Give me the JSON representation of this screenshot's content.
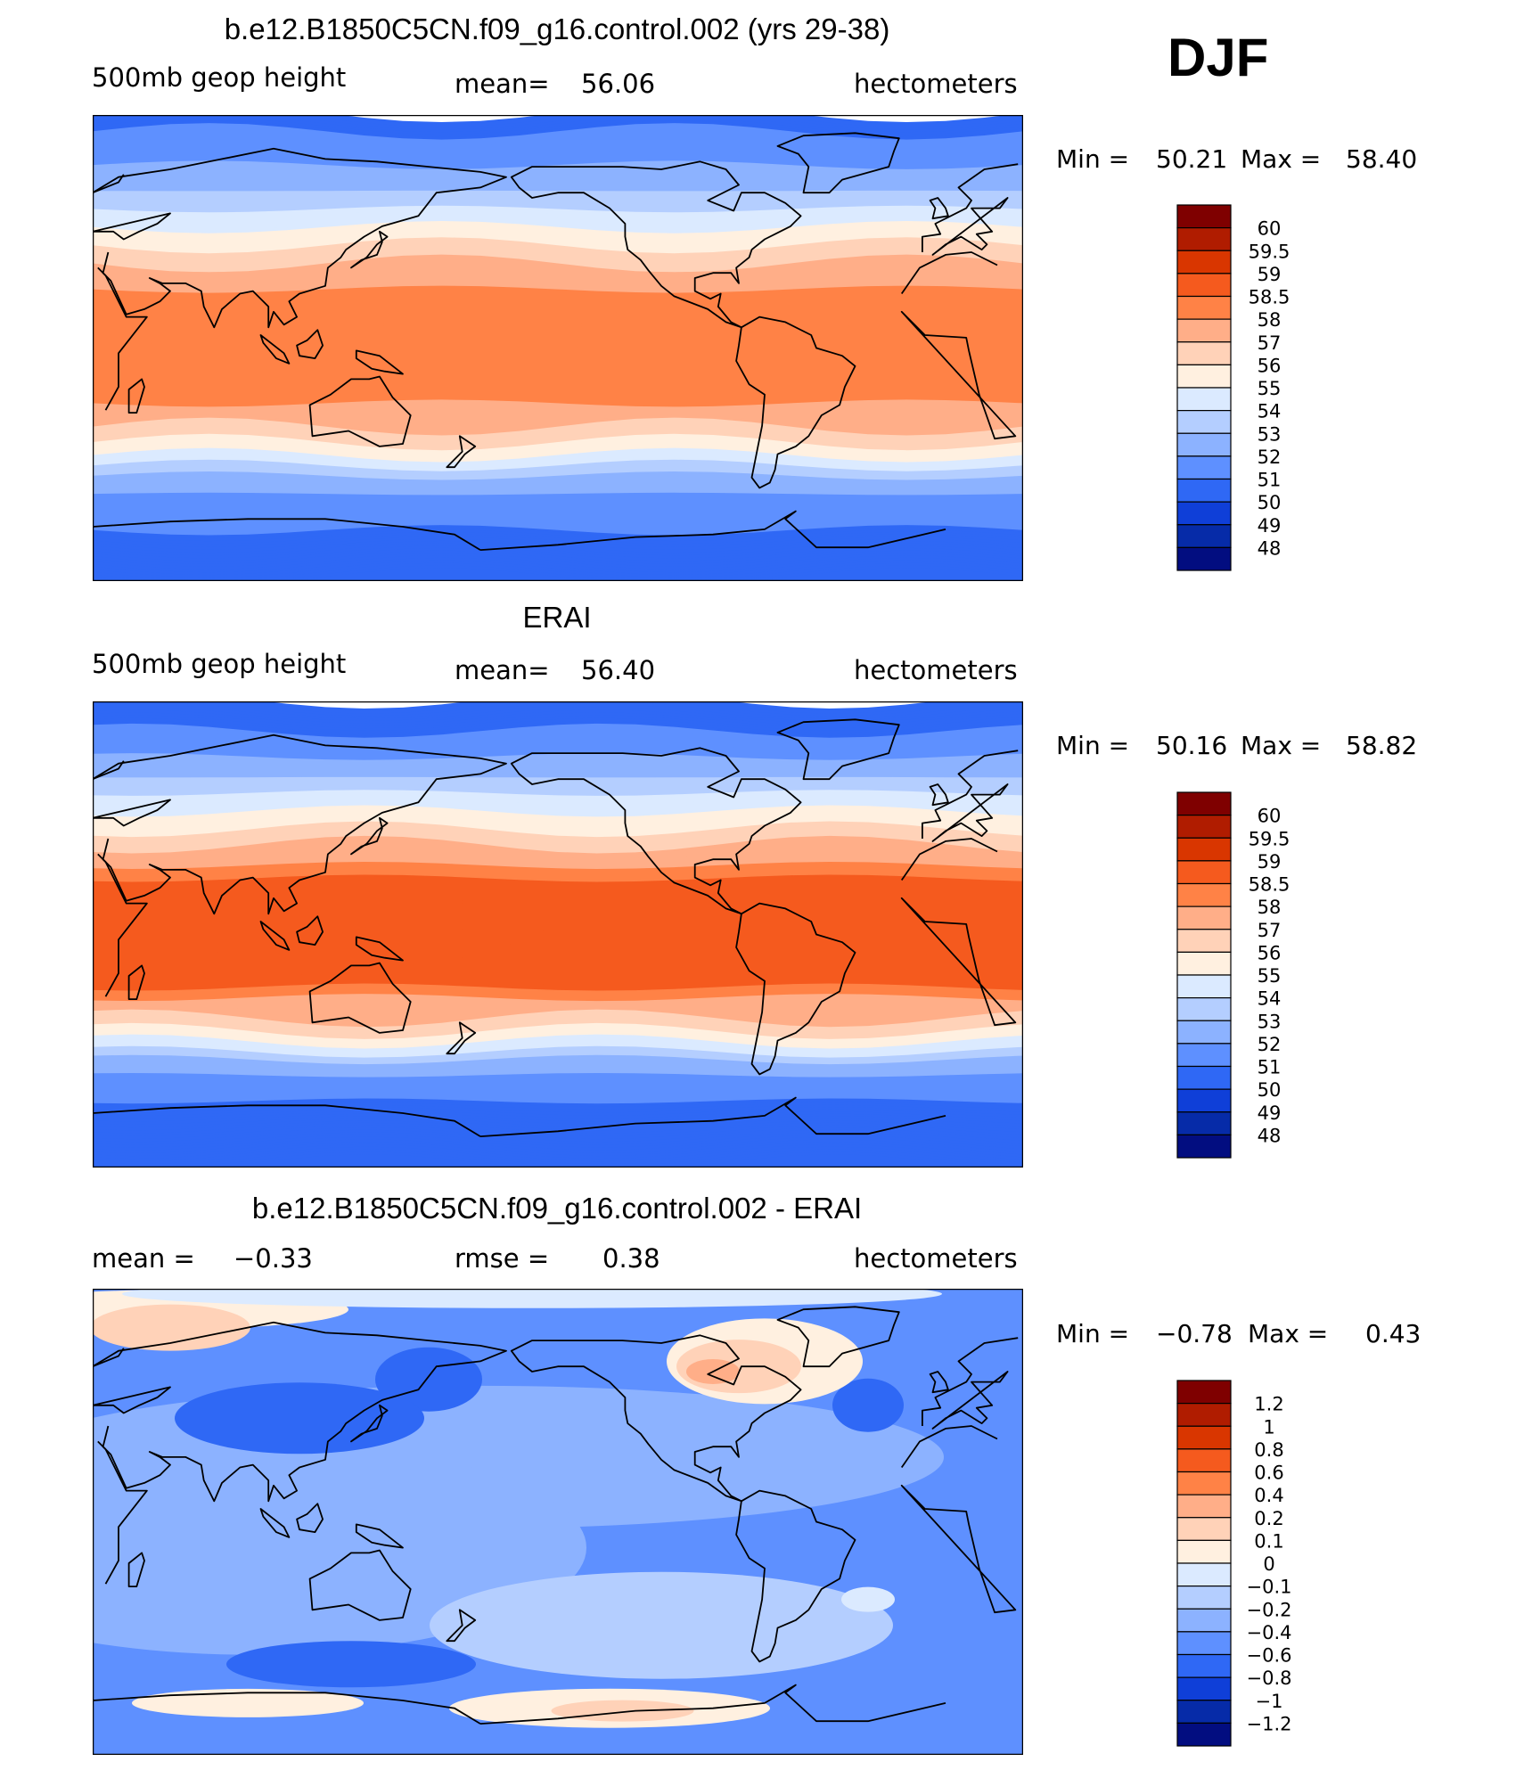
{
  "season": "DJF",
  "panels": [
    {
      "title": "b.e12.B1850C5CN.f09_g16.control.002 (yrs 29-38)",
      "left_label": "500mb  geop  height",
      "stat_label": "mean=",
      "stat_value": "56.06",
      "stat2_label": "",
      "stat2_value": "",
      "units": "hectometers",
      "min_label": "Min  =",
      "min_value": "50.21",
      "max_label": "Max  =",
      "max_value": "58.40",
      "colorbar_labels": [
        "60",
        "59.5",
        "59",
        "58.5",
        "58",
        "57",
        "56",
        "55",
        "54",
        "53",
        "52",
        "51",
        "50",
        "49",
        "48"
      ]
    },
    {
      "title": "ERAI",
      "left_label": "500mb  geop  height",
      "stat_label": "mean=",
      "stat_value": "56.40",
      "stat2_label": "",
      "stat2_value": "",
      "units": "hectometers",
      "min_label": "Min  =",
      "min_value": "50.16",
      "max_label": "Max  =",
      "max_value": "58.82",
      "colorbar_labels": [
        "60",
        "59.5",
        "59",
        "58.5",
        "58",
        "57",
        "56",
        "55",
        "54",
        "53",
        "52",
        "51",
        "50",
        "49",
        "48"
      ]
    },
    {
      "title": "b.e12.B1850C5CN.f09_g16.control.002 - ERAI",
      "left_label": "mean  =",
      "stat_label": "",
      "stat_value": "−0.33",
      "stat2_label": "rmse  =",
      "stat2_value": "0.38",
      "units": "hectometers",
      "min_label": "Min  =",
      "min_value": "−0.78",
      "max_label": "Max  =",
      "max_value": "0.43",
      "colorbar_labels": [
        "1.2",
        "1",
        "0.8",
        "0.6",
        "0.4",
        "0.2",
        "0.1",
        "0",
        "−0.1",
        "−0.2",
        "−0.4",
        "−0.6",
        "−0.8",
        "−1",
        "−1.2"
      ]
    }
  ],
  "colors": {
    "palette": [
      "#7f0000",
      "#b01c00",
      "#d93600",
      "#f55a1e",
      "#ff8246",
      "#ffae88",
      "#ffd2b8",
      "#fff0e0",
      "#dbeaff",
      "#b4ceff",
      "#8cb2ff",
      "#5e90ff",
      "#2f68f5",
      "#0f3fd8",
      "#062ba8",
      "#020d80"
    ],
    "ocean_dark": "#2f68f5",
    "coast": "#000000"
  },
  "chart_data": [
    {
      "type": "heatmap",
      "title": "b.e12.B1850C5CN.f09_g16.control.002 (yrs 29-38)",
      "variable": "500mb geop height",
      "units": "hectometers",
      "mean": 56.06,
      "min": 50.21,
      "max": 58.4,
      "levels": [
        48,
        49,
        50,
        51,
        52,
        53,
        54,
        55,
        56,
        57,
        58,
        58.5,
        59,
        59.5,
        60
      ],
      "zonal_profile": {
        "lat": [
          90,
          75,
          60,
          50,
          40,
          30,
          20,
          0,
          -20,
          -30,
          -40,
          -50,
          -60,
          -75,
          -90
        ],
        "value": [
          50.5,
          51.5,
          53,
          54.5,
          55.8,
          57.3,
          58.2,
          58.3,
          58.2,
          57.2,
          55.5,
          53,
          51.5,
          50.8,
          50.5
        ]
      }
    },
    {
      "type": "heatmap",
      "title": "ERAI",
      "variable": "500mb geop height",
      "units": "hectometers",
      "mean": 56.4,
      "min": 50.16,
      "max": 58.82,
      "levels": [
        48,
        49,
        50,
        51,
        52,
        53,
        54,
        55,
        56,
        57,
        58,
        58.5,
        59,
        59.5,
        60
      ],
      "zonal_profile": {
        "lat": [
          90,
          75,
          60,
          50,
          40,
          30,
          20,
          0,
          -20,
          -30,
          -40,
          -50,
          -60,
          -75,
          -90
        ],
        "value": [
          50.3,
          51.2,
          53,
          54.6,
          56,
          57.6,
          58.6,
          58.7,
          58.6,
          57.5,
          55.6,
          52.8,
          51.2,
          50.6,
          50.4
        ]
      }
    },
    {
      "type": "heatmap",
      "title": "b.e12.B1850C5CN.f09_g16.control.002 - ERAI",
      "variable": "difference",
      "units": "hectometers",
      "mean": -0.33,
      "rmse": 0.38,
      "min": -0.78,
      "max": 0.43,
      "levels": [
        -1.2,
        -1,
        -0.8,
        -0.6,
        -0.4,
        -0.2,
        -0.1,
        0,
        0.1,
        0.2,
        0.4,
        0.6,
        0.8,
        1,
        1.2
      ]
    }
  ]
}
